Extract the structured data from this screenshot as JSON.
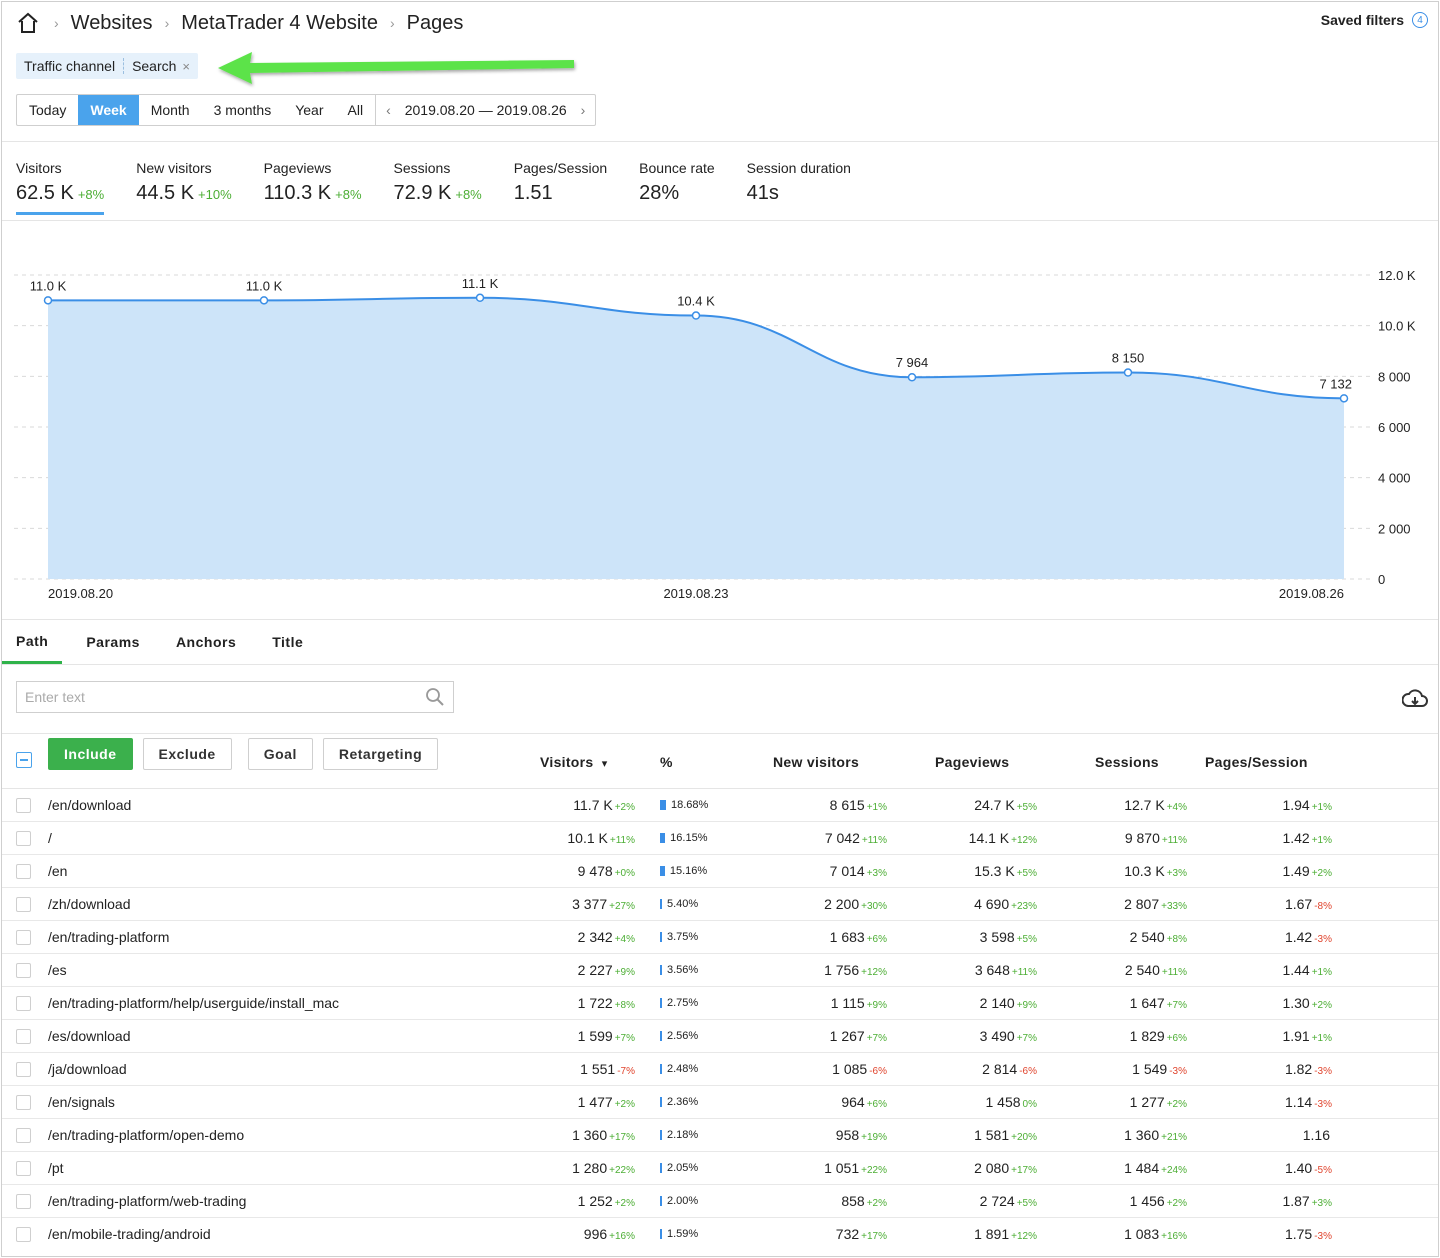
{
  "breadcrumb": [
    "Websites",
    "MetaTrader 4 Website",
    "Pages"
  ],
  "saved_filters": {
    "label": "Saved filters",
    "count": "4"
  },
  "filter": {
    "key": "Traffic channel",
    "value": "Search",
    "remove": "×"
  },
  "periods": [
    "Today",
    "Week",
    "Month",
    "3 months",
    "Year",
    "All"
  ],
  "active_period": "Week",
  "date_range": "2019.08.20 — 2019.08.26",
  "metrics": [
    {
      "label": "Visitors",
      "value": "62.5 K",
      "change": "+8%"
    },
    {
      "label": "New visitors",
      "value": "44.5 K",
      "change": "+10%"
    },
    {
      "label": "Pageviews",
      "value": "110.3 K",
      "change": "+8%"
    },
    {
      "label": "Sessions",
      "value": "72.9 K",
      "change": "+8%"
    },
    {
      "label": "Pages/Session",
      "value": "1.51",
      "change": ""
    },
    {
      "label": "Bounce rate",
      "value": "28%",
      "change": ""
    },
    {
      "label": "Session duration",
      "value": "41s",
      "change": ""
    }
  ],
  "chart_data": {
    "type": "area",
    "x": [
      "2019.08.20",
      "2019.08.21",
      "2019.08.22",
      "2019.08.23",
      "2019.08.24",
      "2019.08.25",
      "2019.08.26"
    ],
    "values": [
      11000,
      11000,
      11100,
      10400,
      7964,
      8150,
      7132
    ],
    "point_labels": [
      "11.0 K",
      "11.0 K",
      "11.1 K",
      "10.4 K",
      "7 964",
      "8 150",
      "7 132"
    ],
    "x_tick_labels": [
      "2019.08.20",
      "2019.08.23",
      "2019.08.26"
    ],
    "x_tick_indices": [
      0,
      3,
      6
    ],
    "y_ticks": [
      0,
      2000,
      4000,
      6000,
      8000,
      10000,
      12000
    ],
    "y_tick_labels": [
      "0",
      "2 000",
      "4 000",
      "6 000",
      "8 000",
      "10.0 K",
      "12.0 K"
    ],
    "ylim": [
      0,
      12000
    ],
    "grid": true,
    "line_color": "#3a8ee6",
    "fill_color": "#cde4f9"
  },
  "tabs": [
    "Path",
    "Params",
    "Anchors",
    "Title"
  ],
  "active_tab": "Path",
  "search": {
    "placeholder": "Enter text"
  },
  "actions": [
    "Include",
    "Exclude",
    "Goal",
    "Retargeting"
  ],
  "columns": [
    "Visitors",
    "%",
    "New visitors",
    "Pageviews",
    "Sessions",
    "Pages/Session"
  ],
  "sort_indicator": "▾",
  "rows": [
    {
      "path": "/en/download",
      "visitors": "11.7 K",
      "vc": "+2%",
      "pct": 18.68,
      "pct_label": "18.68%",
      "new": "8 615",
      "nc": "+1%",
      "pv": "24.7 K",
      "pc": "+5%",
      "sess": "12.7 K",
      "sc": "+4%",
      "pps": "1.94",
      "ppc": "+1%"
    },
    {
      "path": "/",
      "visitors": "10.1 K",
      "vc": "+11%",
      "pct": 16.15,
      "pct_label": "16.15%",
      "new": "7 042",
      "nc": "+11%",
      "pv": "14.1 K",
      "pc": "+12%",
      "sess": "9 870",
      "sc": "+11%",
      "pps": "1.42",
      "ppc": "+1%"
    },
    {
      "path": "/en",
      "visitors": "9 478",
      "vc": "+0%",
      "pct": 15.16,
      "pct_label": "15.16%",
      "new": "7 014",
      "nc": "+3%",
      "pv": "15.3 K",
      "pc": "+5%",
      "sess": "10.3 K",
      "sc": "+3%",
      "pps": "1.49",
      "ppc": "+2%"
    },
    {
      "path": "/zh/download",
      "visitors": "3 377",
      "vc": "+27%",
      "pct": 5.4,
      "pct_label": "5.40%",
      "new": "2 200",
      "nc": "+30%",
      "pv": "4 690",
      "pc": "+23%",
      "sess": "2 807",
      "sc": "+33%",
      "pps": "1.67",
      "ppc": "-8%"
    },
    {
      "path": "/en/trading-platform",
      "visitors": "2 342",
      "vc": "+4%",
      "pct": 3.75,
      "pct_label": "3.75%",
      "new": "1 683",
      "nc": "+6%",
      "pv": "3 598",
      "pc": "+5%",
      "sess": "2 540",
      "sc": "+8%",
      "pps": "1.42",
      "ppc": "-3%"
    },
    {
      "path": "/es",
      "visitors": "2 227",
      "vc": "+9%",
      "pct": 3.56,
      "pct_label": "3.56%",
      "new": "1 756",
      "nc": "+12%",
      "pv": "3 648",
      "pc": "+11%",
      "sess": "2 540",
      "sc": "+11%",
      "pps": "1.44",
      "ppc": "+1%"
    },
    {
      "path": "/en/trading-platform/help/userguide/install_mac",
      "visitors": "1 722",
      "vc": "+8%",
      "pct": 2.75,
      "pct_label": "2.75%",
      "new": "1 115",
      "nc": "+9%",
      "pv": "2 140",
      "pc": "+9%",
      "sess": "1 647",
      "sc": "+7%",
      "pps": "1.30",
      "ppc": "+2%"
    },
    {
      "path": "/es/download",
      "visitors": "1 599",
      "vc": "+7%",
      "pct": 2.56,
      "pct_label": "2.56%",
      "new": "1 267",
      "nc": "+7%",
      "pv": "3 490",
      "pc": "+7%",
      "sess": "1 829",
      "sc": "+6%",
      "pps": "1.91",
      "ppc": "+1%"
    },
    {
      "path": "/ja/download",
      "visitors": "1 551",
      "vc": "-7%",
      "pct": 2.48,
      "pct_label": "2.48%",
      "new": "1 085",
      "nc": "-6%",
      "pv": "2 814",
      "pc": "-6%",
      "sess": "1 549",
      "sc": "-3%",
      "pps": "1.82",
      "ppc": "-3%"
    },
    {
      "path": "/en/signals",
      "visitors": "1 477",
      "vc": "+2%",
      "pct": 2.36,
      "pct_label": "2.36%",
      "new": "964",
      "nc": "+6%",
      "pv": "1 458",
      "pc": "0%",
      "sess": "1 277",
      "sc": "+2%",
      "pps": "1.14",
      "ppc": "-3%"
    },
    {
      "path": "/en/trading-platform/open-demo",
      "visitors": "1 360",
      "vc": "+17%",
      "pct": 2.18,
      "pct_label": "2.18%",
      "new": "958",
      "nc": "+19%",
      "pv": "1 581",
      "pc": "+20%",
      "sess": "1 360",
      "sc": "+21%",
      "pps": "1.16",
      "ppc": ""
    },
    {
      "path": "/pt",
      "visitors": "1 280",
      "vc": "+22%",
      "pct": 2.05,
      "pct_label": "2.05%",
      "new": "1 051",
      "nc": "+22%",
      "pv": "2 080",
      "pc": "+17%",
      "sess": "1 484",
      "sc": "+24%",
      "pps": "1.40",
      "ppc": "-5%"
    },
    {
      "path": "/en/trading-platform/web-trading",
      "visitors": "1 252",
      "vc": "+2%",
      "pct": 2.0,
      "pct_label": "2.00%",
      "new": "858",
      "nc": "+2%",
      "pv": "2 724",
      "pc": "+5%",
      "sess": "1 456",
      "sc": "+2%",
      "pps": "1.87",
      "ppc": "+3%"
    },
    {
      "path": "/en/mobile-trading/android",
      "visitors": "996",
      "vc": "+16%",
      "pct": 1.59,
      "pct_label": "1.59%",
      "new": "732",
      "nc": "+17%",
      "pv": "1 891",
      "pc": "+12%",
      "sess": "1 083",
      "sc": "+16%",
      "pps": "1.75",
      "ppc": "-3%"
    }
  ],
  "colors": {
    "accent": "#4aa3ec",
    "green": "#3bb04c",
    "up": "#4cae34",
    "down": "#e0442d",
    "annotation_arrow": "#5be34a"
  }
}
